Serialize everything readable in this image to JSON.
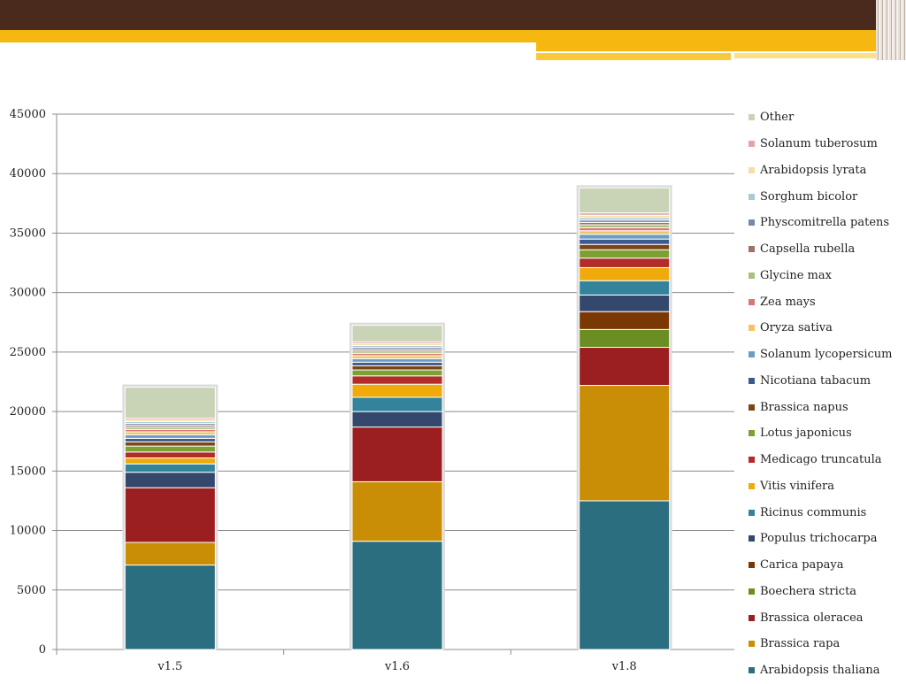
{
  "colors": {
    "topbar": "#4b2a1e",
    "accent": "#f5b710"
  },
  "chart_data": {
    "type": "stacked-bar",
    "title": "",
    "xlabel": "",
    "ylabel": "",
    "ylim": [
      0,
      45000
    ],
    "yticks": [
      0,
      5000,
      10000,
      15000,
      20000,
      25000,
      30000,
      35000,
      40000,
      45000
    ],
    "grid": true,
    "legend_position": "right",
    "categories": [
      "v1.5",
      "v1.6",
      "v1.8"
    ],
    "series": [
      {
        "name": "Arabidopsis thaliana",
        "color": "#2b6e80",
        "values": [
          7100,
          9100,
          12500
        ]
      },
      {
        "name": "Brassica rapa",
        "color": "#c98e05",
        "values": [
          1900,
          5000,
          9700
        ]
      },
      {
        "name": "Brassica oleracea",
        "color": "#9b1f20",
        "values": [
          4600,
          4600,
          3200
        ]
      },
      {
        "name": "Boechera stricta",
        "color": "#6b8e23",
        "values": [
          0,
          0,
          1500
        ]
      },
      {
        "name": "Carica papaya",
        "color": "#7a3804",
        "values": [
          0,
          0,
          1500
        ]
      },
      {
        "name": "Populus trichocarpa",
        "color": "#34486d",
        "values": [
          1300,
          1300,
          1400
        ]
      },
      {
        "name": "Ricinus communis",
        "color": "#33849b",
        "values": [
          700,
          1200,
          1200
        ]
      },
      {
        "name": "Vitis vinifera",
        "color": "#f0ab0a",
        "values": [
          500,
          1100,
          1100
        ]
      },
      {
        "name": "Medicago truncatula",
        "color": "#b22c2a",
        "values": [
          500,
          700,
          800
        ]
      },
      {
        "name": "Lotus japonicus",
        "color": "#7ca132",
        "values": [
          500,
          500,
          700
        ]
      },
      {
        "name": "Brassica napus",
        "color": "#7b4615",
        "values": [
          350,
          350,
          450
        ]
      },
      {
        "name": "Nicotiana tabacum",
        "color": "#3c5a8f",
        "values": [
          300,
          300,
          450
        ]
      },
      {
        "name": "Solanum lycopersicum",
        "color": "#6c9dc4",
        "values": [
          300,
          300,
          400
        ]
      },
      {
        "name": "Oryza sativa",
        "color": "#f2c464",
        "values": [
          250,
          250,
          300
        ]
      },
      {
        "name": "Zea mays",
        "color": "#d97676",
        "values": [
          200,
          200,
          250
        ]
      },
      {
        "name": "Glycine max",
        "color": "#a8c07a",
        "values": [
          200,
          200,
          250
        ]
      },
      {
        "name": "Capsella rubella",
        "color": "#9e7264",
        "values": [
          150,
          150,
          200
        ]
      },
      {
        "name": "Physcomitrella patens",
        "color": "#7689a8",
        "values": [
          150,
          150,
          200
        ]
      },
      {
        "name": "Sorghum bicolor",
        "color": "#a9c9d4",
        "values": [
          150,
          150,
          200
        ]
      },
      {
        "name": "Arabidopsis lyrata",
        "color": "#f5dfa6",
        "values": [
          150,
          150,
          200
        ]
      },
      {
        "name": "Solanum tuberosum",
        "color": "#e6a3a6",
        "values": [
          150,
          150,
          200
        ]
      },
      {
        "name": "Other",
        "color": "#c8d4b5",
        "values": [
          2600,
          1400,
          2100
        ]
      }
    ]
  }
}
